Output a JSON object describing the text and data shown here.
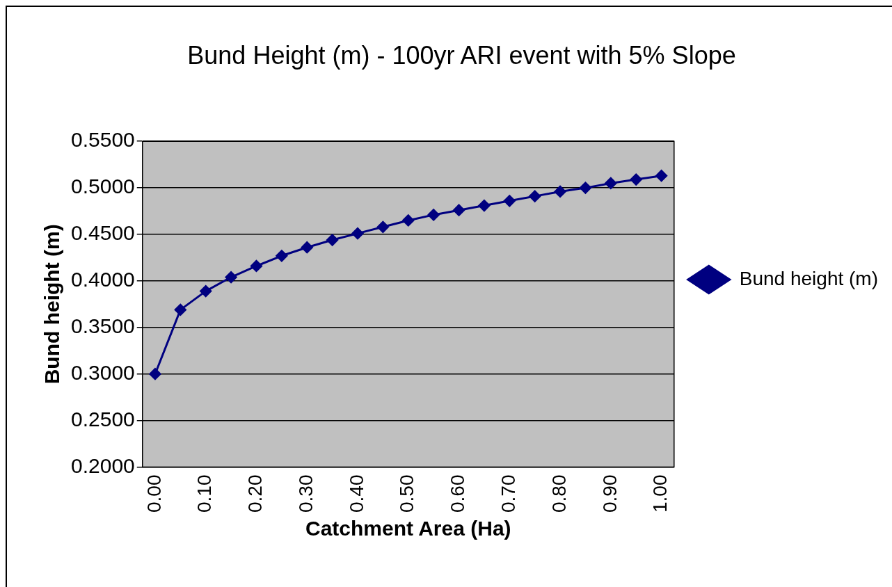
{
  "chart_data": {
    "type": "line",
    "title": "Bund Height (m) - 100yr ARI event with 5% Slope",
    "xlabel": "Catchment Area (Ha)",
    "ylabel": "Bund height (m)",
    "categories": [
      "0.00",
      null,
      "0.10",
      null,
      "0.20",
      null,
      "0.30",
      null,
      "0.40",
      null,
      "0.50",
      null,
      "0.60",
      null,
      "0.70",
      null,
      "0.80",
      null,
      "0.90",
      null,
      "1.00"
    ],
    "series": [
      {
        "name": "Bund height (m)",
        "color": "#000080",
        "values": [
          0.3,
          0.369,
          0.389,
          0.404,
          0.416,
          0.427,
          0.436,
          0.444,
          0.451,
          0.458,
          0.465,
          0.471,
          0.476,
          0.481,
          0.486,
          0.491,
          0.496,
          0.5,
          0.505,
          0.509,
          0.513
        ]
      }
    ],
    "ylim": [
      0.2,
      0.55
    ],
    "yticks": [
      {
        "value": 0.2,
        "label": "0.2000"
      },
      {
        "value": 0.25,
        "label": "0.2500"
      },
      {
        "value": 0.3,
        "label": "0.3000"
      },
      {
        "value": 0.35,
        "label": "0.3500"
      },
      {
        "value": 0.4,
        "label": "0.4000"
      },
      {
        "value": 0.45,
        "label": "0.4500"
      },
      {
        "value": 0.5,
        "label": "0.5000"
      },
      {
        "value": 0.55,
        "label": "0.5500"
      }
    ],
    "grid": "y",
    "legend": "right",
    "marker": "diamond",
    "line_style": "solid"
  }
}
